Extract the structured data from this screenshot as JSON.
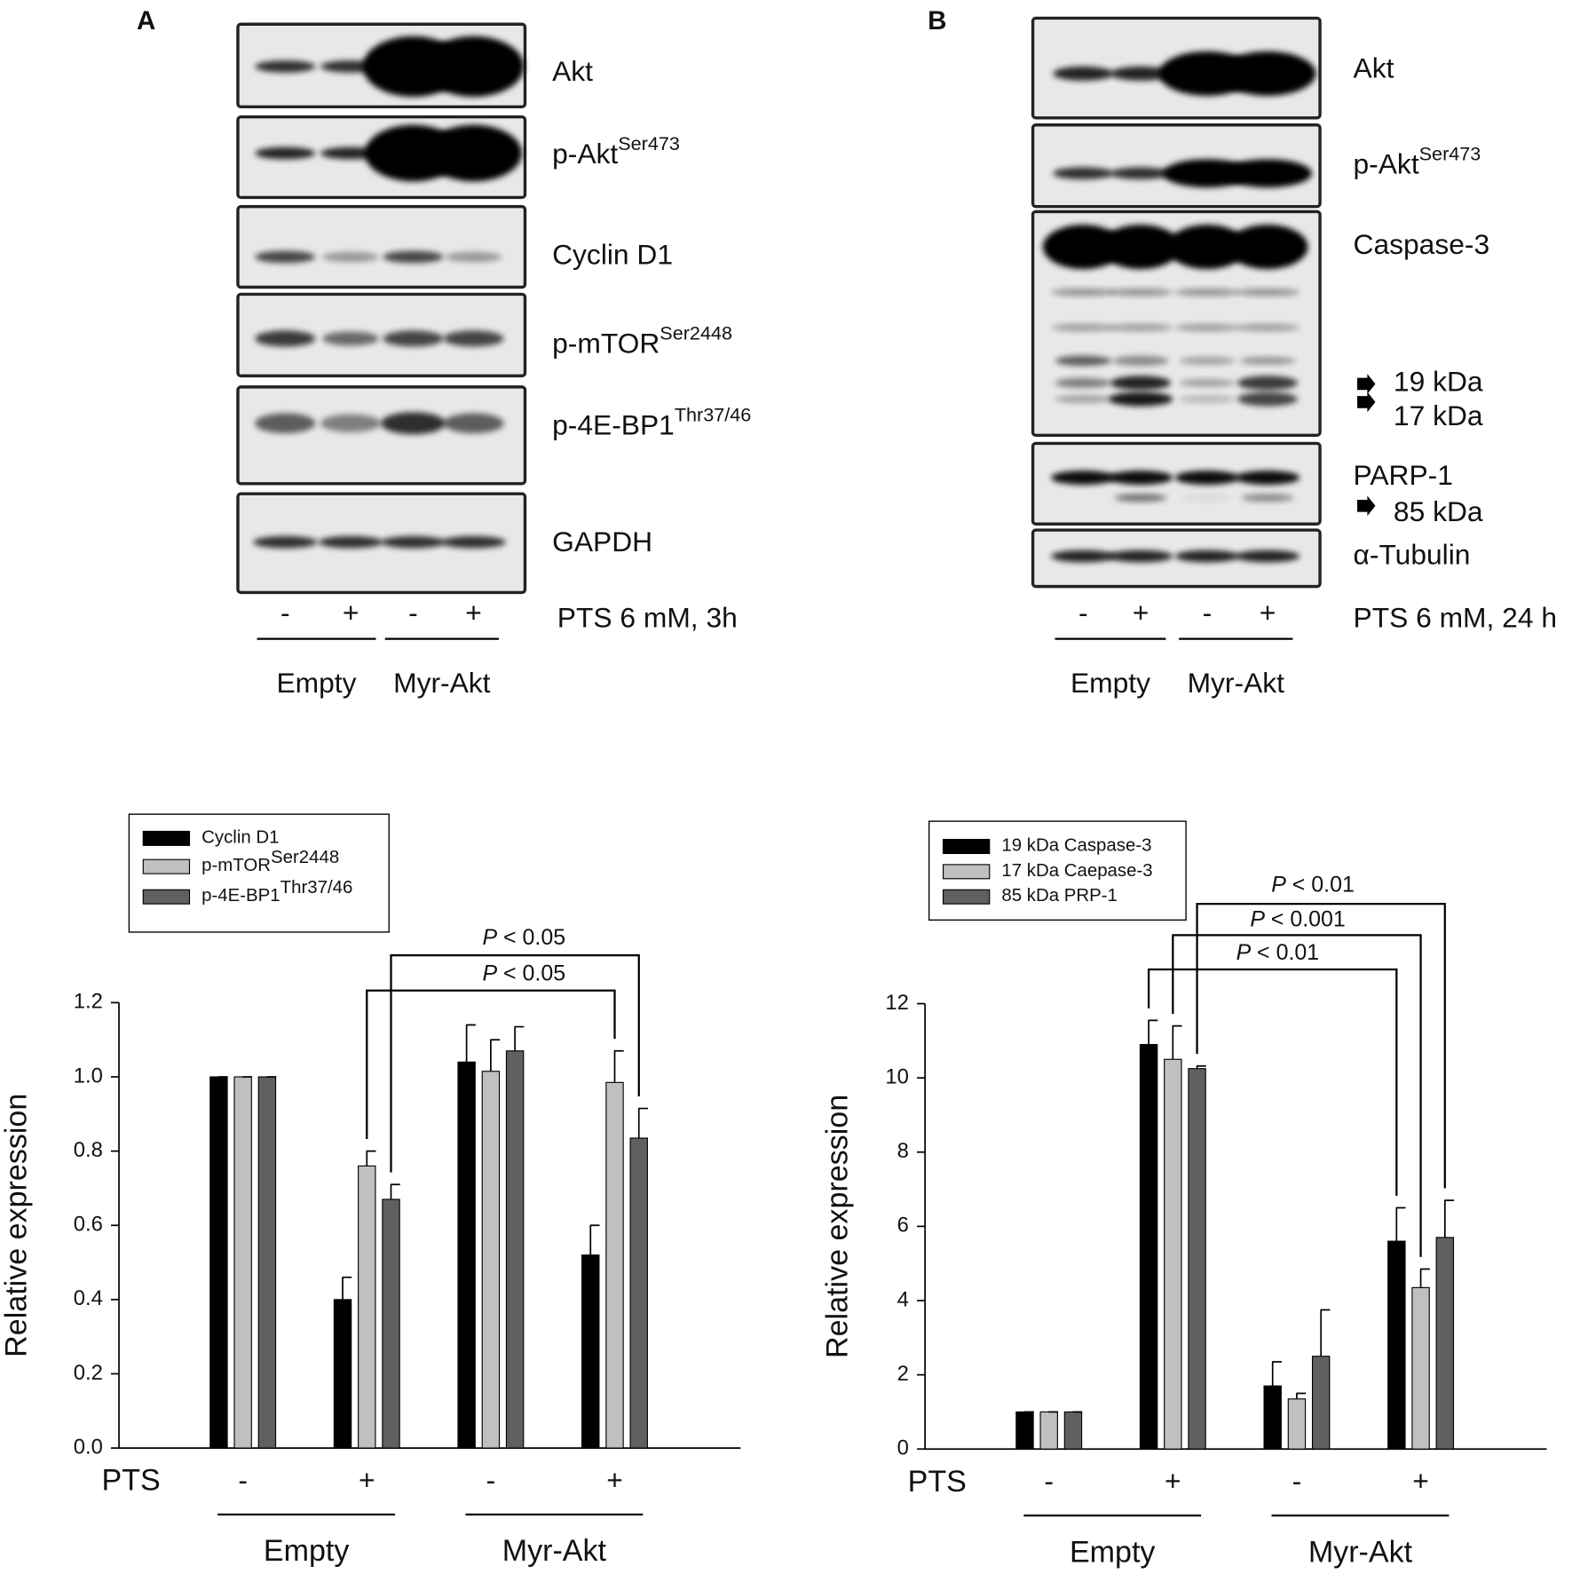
{
  "panels": [
    {
      "label": "A",
      "labels": [
        {
          "text": "Akt"
        },
        {
          "text": "p-Akt",
          "sup": "Ser473"
        },
        {
          "text": "Cyclin D1"
        },
        {
          "text": "p-mTOR",
          "sup": "Ser2448"
        },
        {
          "text": "p-4E-BP1",
          "sup": "Thr37/46"
        },
        {
          "text": "GAPDH"
        }
      ],
      "treatment": [
        "-",
        "+",
        "-",
        "+"
      ],
      "treatment_label": "PTS 6 mM, 3h",
      "groups": [
        "Empty",
        "Myr-Akt"
      ]
    },
    {
      "label": "B",
      "labels": [
        {
          "text": "Akt"
        },
        {
          "text": "p-Akt",
          "sup": "Ser473"
        },
        {
          "text": "Caspase-3"
        },
        {
          "text": "19 kDa"
        },
        {
          "text": "17 kDa"
        },
        {
          "text": "PARP-1"
        },
        {
          "text": "85 kDa"
        },
        {
          "text": "α-Tubulin"
        }
      ],
      "treatment": [
        "-",
        "+",
        "-",
        "+"
      ],
      "treatment_label": "PTS 6 mM, 24 h",
      "groups": [
        "Empty",
        "Myr-Akt"
      ]
    }
  ],
  "chart_data": [
    {
      "type": "bar",
      "x_label": "PTS",
      "categories": [
        "-",
        "+",
        "-",
        "+"
      ],
      "groups": [
        "Empty",
        "Myr-Akt"
      ],
      "ylabel": "Relative expression",
      "ylim": [
        0,
        1.2
      ],
      "yticks": [
        {
          "value": 0,
          "label": "0.0"
        },
        0.2,
        0.4,
        0.6,
        0.8,
        {
          "value": 1,
          "label": "1.0"
        },
        1.2
      ],
      "series": [
        {
          "name": "Cyclin D1",
          "color": "#000000",
          "values": [
            1.0,
            0.4,
            1.04,
            0.52
          ],
          "errors": [
            0,
            0.06,
            0.1,
            0.08
          ]
        },
        {
          "name": "p-mTOR",
          "sup": "Ser2448",
          "color": "#c0c0c0",
          "values": [
            1.0,
            0.76,
            1.015,
            0.985
          ],
          "errors": [
            0,
            0.04,
            0.085,
            0.085
          ]
        },
        {
          "name": "p-4E-BP1",
          "sup": "Thr37/46",
          "color": "#606060",
          "values": [
            1.0,
            0.67,
            1.07,
            0.835
          ],
          "errors": [
            0,
            0.04,
            0.065,
            0.08
          ]
        }
      ],
      "annotations": [
        {
          "italic": "P",
          "text": "< 0.05"
        },
        {
          "italic": "P",
          "text": "< 0.05"
        }
      ]
    },
    {
      "type": "bar",
      "x_label": "PTS",
      "categories": [
        "-",
        "+",
        "-",
        "+"
      ],
      "groups": [
        "Empty",
        "Myr-Akt"
      ],
      "ylabel": "Relative expression",
      "ylim": [
        0,
        12
      ],
      "yticks": [
        0,
        2,
        4,
        6,
        8,
        10,
        12
      ],
      "series": [
        {
          "name": "19 kDa Caspase-3",
          "color": "#000000",
          "values": [
            1,
            10.9,
            1.7,
            5.6
          ],
          "errors": [
            0,
            0.65,
            0.65,
            0.9
          ]
        },
        {
          "name": "17 kDa Caepase-3",
          "color": "#c0c0c0",
          "values": [
            1,
            10.5,
            1.35,
            4.35
          ],
          "errors": [
            0,
            0.9,
            0.15,
            0.5
          ]
        },
        {
          "name": "85 kDa PRP-1",
          "color": "#606060",
          "values": [
            1,
            10.25,
            2.5,
            5.7
          ],
          "errors": [
            0,
            0.07,
            1.25,
            1.0
          ]
        }
      ],
      "annotations": [
        {
          "italic": "P",
          "text": "< 0.01"
        },
        {
          "italic": "P",
          "text": "< 0.001"
        },
        {
          "italic": "P",
          "text": "< 0.01"
        }
      ]
    }
  ]
}
